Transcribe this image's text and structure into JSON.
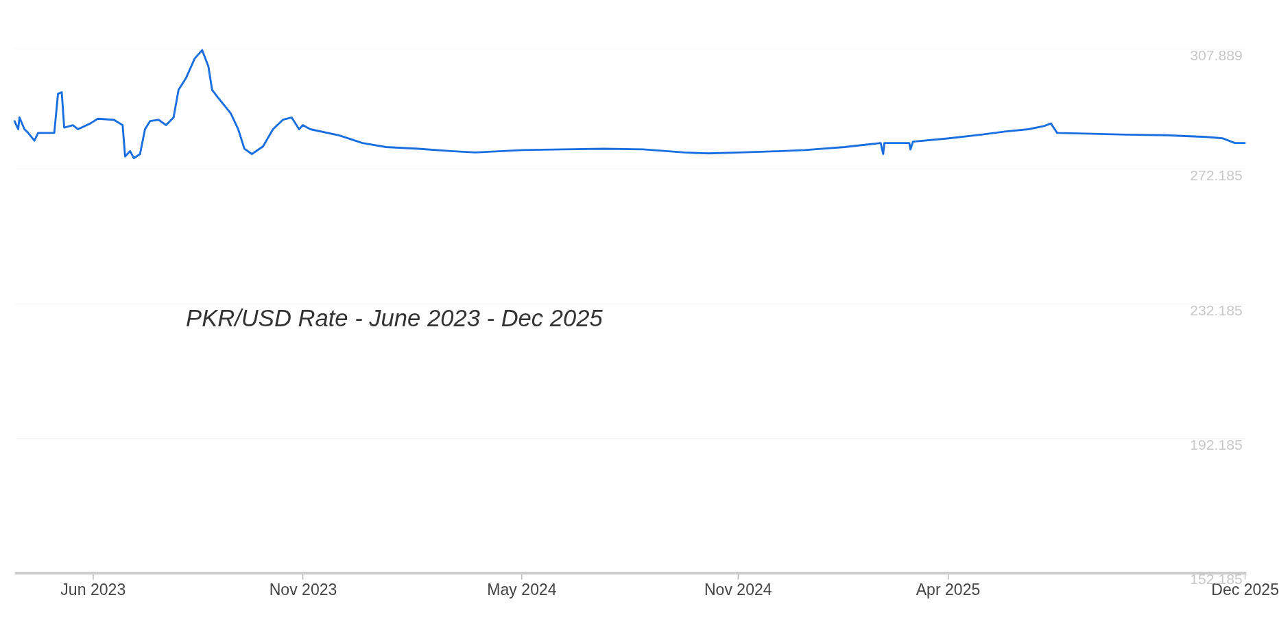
{
  "chart_data": {
    "type": "line",
    "annotations": [
      "PKR/USD Rate - June 2023 - Dec 2025"
    ],
    "x": [
      "2023-03-30",
      "2023-04-02",
      "2023-04-03",
      "2023-04-07",
      "2023-04-10",
      "2023-04-15",
      "2023-04-18",
      "2023-05-01",
      "2023-05-04",
      "2023-05-07",
      "2023-05-09",
      "2023-05-16",
      "2023-05-20",
      "2023-05-30",
      "2023-06-05",
      "2023-06-18",
      "2023-06-25",
      "2023-06-27",
      "2023-07-01",
      "2023-07-04",
      "2023-07-09",
      "2023-07-13",
      "2023-07-17",
      "2023-07-24",
      "2023-07-30",
      "2023-08-05",
      "2023-08-09",
      "2023-08-15",
      "2023-08-22",
      "2023-08-28",
      "2023-09-02",
      "2023-09-05",
      "2023-09-10",
      "2023-09-20",
      "2023-09-26",
      "2023-10-01",
      "2023-10-07",
      "2023-10-16",
      "2023-10-24",
      "2023-11-01",
      "2023-11-08",
      "2023-11-14",
      "2023-11-17",
      "2023-11-23",
      "2023-12-16",
      "2024-01-04",
      "2024-01-23",
      "2024-02-18",
      "2024-03-15",
      "2024-04-04",
      "2024-05-12",
      "2024-06-14",
      "2024-07-16",
      "2024-08-17",
      "2024-09-19",
      "2024-10-08",
      "2024-11-03",
      "2024-12-06",
      "2024-12-25",
      "2025-01-26",
      "2025-02-24",
      "2025-02-26",
      "2025-02-27",
      "2025-03-19",
      "2025-03-20",
      "2025-03-22",
      "2025-04-20",
      "2025-05-16",
      "2025-06-04",
      "2025-06-23",
      "2025-07-06",
      "2025-07-11",
      "2025-07-16",
      "2025-08-08",
      "2025-09-09",
      "2025-10-11",
      "2025-11-13",
      "2025-11-26",
      "2025-12-06",
      "2025-12-14"
    ],
    "series": [
      {
        "color": "#1a6fe0",
        "values": [
          286.4,
          284.0,
          287.5,
          284.0,
          282.9,
          280.6,
          282.9,
          282.9,
          294.5,
          295.0,
          284.5,
          285.2,
          284.0,
          285.7,
          287.1,
          286.8,
          285.2,
          275.9,
          277.5,
          275.4,
          276.6,
          284.0,
          286.4,
          286.8,
          285.2,
          287.5,
          295.7,
          299.2,
          305.0,
          307.5,
          302.7,
          295.7,
          293.3,
          288.7,
          284.0,
          278.2,
          276.6,
          278.9,
          284.0,
          286.8,
          287.5,
          284.0,
          285.2,
          284.0,
          282.2,
          279.9,
          278.7,
          278.2,
          277.5,
          277.1,
          277.8,
          278.0,
          278.2,
          278.0,
          277.1,
          276.8,
          277.1,
          277.5,
          277.8,
          278.7,
          279.9,
          276.6,
          279.9,
          279.9,
          278.0,
          280.3,
          281.3,
          282.4,
          283.3,
          284.0,
          285.0,
          285.7,
          282.9,
          282.7,
          282.4,
          282.2,
          281.7,
          281.3,
          279.9,
          279.9
        ]
      }
    ],
    "xlim": [
      "2023-03-30",
      "2025-12-15"
    ],
    "xticks": [
      {
        "value": "2023-06-01",
        "label": "Jun 2023"
      },
      {
        "value": "2023-11-17",
        "label": "Nov 2023"
      },
      {
        "value": "2024-05-11",
        "label": "May 2024"
      },
      {
        "value": "2024-11-01",
        "label": "Nov 2024"
      },
      {
        "value": "2025-04-19",
        "label": "Apr 2025"
      },
      {
        "value": "2025-12-14",
        "label": "Dec 2025"
      }
    ],
    "ylim": [
      152.185,
      307.889
    ],
    "yticks": [
      152.185,
      192.185,
      232.185,
      272.185,
      307.889
    ],
    "grid": "y",
    "marker": "none",
    "line_style": "solid"
  }
}
